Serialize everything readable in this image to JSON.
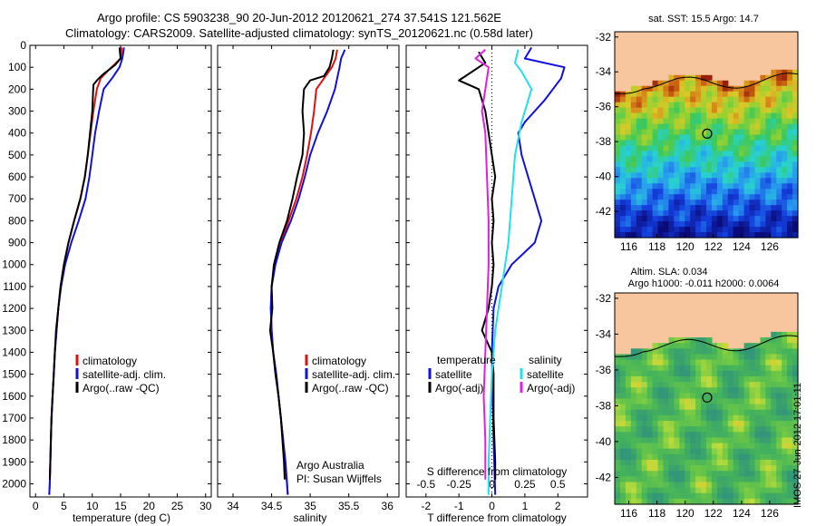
{
  "header": {
    "line1": "Argo profile: CS 5903238_90 20-Jun-2012 20120621_274 37.541S 121.562E",
    "line2": "Climatology: CARS2009. Satellite-adjusted climatology: synTS_20120621.nc (0.58d later)"
  },
  "footer": {
    "stamp": "IMOS 27-Jun-2012 17:01:11"
  },
  "colors": {
    "climatology": "#e01010",
    "satellite": "#1010e0",
    "argo": "#000000",
    "sal_satellite": "#20e0ee",
    "sal_argo": "#e020e0"
  },
  "chart_data": [
    {
      "type": "line",
      "title": "",
      "xlabel": "temperature (deg C)",
      "ylabel": "",
      "xlim": [
        -1,
        31
      ],
      "ylim": [
        2060,
        0
      ],
      "x_ticks": [
        "0",
        "5",
        "10",
        "15",
        "20",
        "25",
        "30"
      ],
      "y_ticks": [
        "0",
        "100",
        "200",
        "300",
        "400",
        "500",
        "600",
        "700",
        "800",
        "900",
        "1000",
        "1100",
        "1200",
        "1300",
        "1400",
        "1500",
        "1600",
        "1700",
        "1800",
        "1900",
        "2000"
      ],
      "legend": [
        "climatology",
        "satellite-adj. clim.",
        "Argo(..raw -QC)"
      ],
      "series": [
        {
          "name": "climatology",
          "color": "#e01010",
          "points": [
            [
              15.2,
              10
            ],
            [
              15.0,
              60
            ],
            [
              13.0,
              110
            ],
            [
              11.5,
              150
            ],
            [
              10.8,
              200
            ],
            [
              10.2,
              300
            ],
            [
              9.7,
              400
            ],
            [
              9.2,
              500
            ],
            [
              8.7,
              600
            ],
            [
              7.9,
              700
            ],
            [
              6.8,
              800
            ],
            [
              5.8,
              900
            ],
            [
              5.0,
              1000
            ],
            [
              4.4,
              1100
            ],
            [
              4.0,
              1200
            ],
            [
              3.7,
              1300
            ],
            [
              3.4,
              1400
            ],
            [
              3.2,
              1500
            ],
            [
              3.0,
              1600
            ],
            [
              2.8,
              1700
            ],
            [
              2.7,
              1800
            ],
            [
              2.6,
              1900
            ],
            [
              2.5,
              2000
            ],
            [
              2.4,
              2050
            ]
          ]
        },
        {
          "name": "satellite-adj. clim.",
          "color": "#1010e0",
          "points": [
            [
              15.6,
              10
            ],
            [
              15.3,
              60
            ],
            [
              14.8,
              100
            ],
            [
              13.5,
              150
            ],
            [
              12.0,
              200
            ],
            [
              11.2,
              300
            ],
            [
              10.5,
              400
            ],
            [
              10.0,
              500
            ],
            [
              9.5,
              600
            ],
            [
              8.8,
              700
            ],
            [
              7.6,
              800
            ],
            [
              6.3,
              900
            ],
            [
              5.2,
              1000
            ],
            [
              4.5,
              1100
            ],
            [
              4.0,
              1200
            ],
            [
              3.7,
              1300
            ],
            [
              3.4,
              1400
            ],
            [
              3.2,
              1500
            ],
            [
              3.0,
              1600
            ],
            [
              2.8,
              1700
            ],
            [
              2.7,
              1800
            ],
            [
              2.6,
              1900
            ],
            [
              2.5,
              2000
            ],
            [
              2.4,
              2050
            ]
          ]
        },
        {
          "name": "Argo(..raw -QC)",
          "color": "#000000",
          "points": [
            [
              14.8,
              10
            ],
            [
              15.0,
              60
            ],
            [
              14.0,
              90
            ],
            [
              12.0,
              130
            ],
            [
              10.8,
              160
            ],
            [
              10.2,
              180
            ],
            [
              10.0,
              300
            ],
            [
              9.6,
              400
            ],
            [
              9.2,
              500
            ],
            [
              8.7,
              600
            ],
            [
              7.9,
              700
            ],
            [
              6.8,
              800
            ],
            [
              5.8,
              900
            ],
            [
              5.0,
              1000
            ],
            [
              4.4,
              1100
            ],
            [
              4.0,
              1200
            ],
            [
              3.6,
              1300
            ],
            [
              3.4,
              1400
            ],
            [
              3.2,
              1500
            ],
            [
              3.0,
              1600
            ],
            [
              2.8,
              1700
            ],
            [
              2.7,
              1800
            ],
            [
              2.6,
              1900
            ],
            [
              2.5,
              1980
            ]
          ]
        }
      ]
    },
    {
      "type": "line",
      "title": "",
      "xlabel": "salinity",
      "ylabel": "",
      "xlim": [
        33.8,
        36.15
      ],
      "ylim": [
        2060,
        0
      ],
      "x_ticks": [
        "34",
        "34.5",
        "35",
        "35.5",
        "36"
      ],
      "legend": [
        "climatology",
        "satellite-adj. clim.",
        "Argo(..raw -QC)"
      ],
      "annotations": [
        "Argo Australia",
        "PI: Susan Wijffels"
      ],
      "series": [
        {
          "name": "climatology",
          "color": "#e01010",
          "points": [
            [
              35.35,
              20
            ],
            [
              35.33,
              60
            ],
            [
              35.28,
              100
            ],
            [
              35.18,
              150
            ],
            [
              35.08,
              200
            ],
            [
              35.05,
              300
            ],
            [
              35.01,
              400
            ],
            [
              34.96,
              500
            ],
            [
              34.9,
              600
            ],
            [
              34.82,
              700
            ],
            [
              34.72,
              800
            ],
            [
              34.62,
              900
            ],
            [
              34.54,
              1000
            ],
            [
              34.5,
              1100
            ],
            [
              34.49,
              1200
            ],
            [
              34.5,
              1300
            ],
            [
              34.52,
              1400
            ],
            [
              34.56,
              1500
            ],
            [
              34.59,
              1600
            ],
            [
              34.62,
              1700
            ],
            [
              34.65,
              1800
            ],
            [
              34.67,
              1900
            ],
            [
              34.7,
              2000
            ],
            [
              34.71,
              2050
            ]
          ]
        },
        {
          "name": "satellite-adj. clim.",
          "color": "#1010e0",
          "points": [
            [
              35.45,
              20
            ],
            [
              35.4,
              60
            ],
            [
              35.38,
              100
            ],
            [
              35.35,
              150
            ],
            [
              35.32,
              200
            ],
            [
              35.22,
              300
            ],
            [
              35.1,
              400
            ],
            [
              35.0,
              500
            ],
            [
              34.93,
              600
            ],
            [
              34.85,
              700
            ],
            [
              34.75,
              800
            ],
            [
              34.63,
              900
            ],
            [
              34.55,
              1000
            ],
            [
              34.5,
              1100
            ],
            [
              34.49,
              1200
            ],
            [
              34.5,
              1300
            ],
            [
              34.52,
              1400
            ],
            [
              34.56,
              1500
            ],
            [
              34.59,
              1600
            ],
            [
              34.62,
              1700
            ],
            [
              34.65,
              1800
            ],
            [
              34.68,
              1900
            ],
            [
              34.7,
              2000
            ],
            [
              34.71,
              2050
            ]
          ]
        },
        {
          "name": "Argo(..raw -QC)",
          "color": "#000000",
          "points": [
            [
              35.3,
              20
            ],
            [
              35.28,
              60
            ],
            [
              35.25,
              100
            ],
            [
              35.18,
              140
            ],
            [
              35.0,
              160
            ],
            [
              34.92,
              200
            ],
            [
              34.9,
              300
            ],
            [
              34.92,
              400
            ],
            [
              34.9,
              500
            ],
            [
              34.83,
              600
            ],
            [
              34.77,
              700
            ],
            [
              34.7,
              800
            ],
            [
              34.6,
              900
            ],
            [
              34.53,
              1000
            ],
            [
              34.5,
              1100
            ],
            [
              34.51,
              1200
            ],
            [
              34.48,
              1300
            ],
            [
              34.52,
              1400
            ],
            [
              34.55,
              1500
            ],
            [
              34.59,
              1600
            ],
            [
              34.62,
              1700
            ],
            [
              34.64,
              1800
            ],
            [
              34.66,
              1900
            ],
            [
              34.67,
              1980
            ]
          ]
        }
      ]
    },
    {
      "type": "line",
      "title": "",
      "xlabel": "T difference from climatology",
      "ylabel": "",
      "xlim": [
        -2.6,
        2.9
      ],
      "ylim": [
        2060,
        0
      ],
      "x_ticks": [
        "-2",
        "-1",
        "0",
        "1",
        "2"
      ],
      "top_xlabel": "S difference from climatology",
      "top_x_ticks": [
        "-0.5",
        "-0.25",
        "0",
        "0.25",
        "0.5"
      ],
      "legend_left_title": "temperature",
      "legend_right_title": "salinity",
      "legend": [
        "satellite",
        "Argo(-adj)",
        "satellite",
        "Argo(-adj)"
      ],
      "series": [
        {
          "name": "satellite",
          "color": "#1010e0",
          "points": [
            [
              1.2,
              10
            ],
            [
              1.0,
              60
            ],
            [
              2.2,
              100
            ],
            [
              2.1,
              150
            ],
            [
              1.6,
              250
            ],
            [
              1.0,
              350
            ],
            [
              0.8,
              400
            ],
            [
              0.9,
              500
            ],
            [
              1.1,
              600
            ],
            [
              1.3,
              700
            ],
            [
              1.5,
              800
            ],
            [
              1.3,
              900
            ],
            [
              0.6,
              1000
            ],
            [
              0.2,
              1100
            ],
            [
              0.05,
              1200
            ],
            [
              0.0,
              1400
            ],
            [
              0.02,
              1600
            ],
            [
              0.05,
              1800
            ],
            [
              0.1,
              2050
            ]
          ]
        },
        {
          "name": "Argo(-adj)",
          "color": "#000000",
          "points": [
            [
              -0.4,
              30
            ],
            [
              -0.2,
              80
            ],
            [
              -1.0,
              160
            ],
            [
              -0.4,
              200
            ],
            [
              -0.2,
              300
            ],
            [
              -0.1,
              400
            ],
            [
              0,
              500
            ],
            [
              0.1,
              600
            ],
            [
              0,
              700
            ],
            [
              0.05,
              800
            ],
            [
              0,
              900
            ],
            [
              0.05,
              1000
            ],
            [
              0,
              1100
            ],
            [
              -0.1,
              1200
            ],
            [
              -0.3,
              1300
            ],
            [
              0,
              1400
            ],
            [
              0.05,
              1500
            ],
            [
              0.05,
              1700
            ],
            [
              0.1,
              1900
            ],
            [
              0.1,
              1980
            ]
          ]
        },
        {
          "name": "satellite",
          "color": "#20e0ee",
          "points": [
            [
              0.8,
              20
            ],
            [
              0.7,
              80
            ],
            [
              0.9,
              120
            ],
            [
              1.2,
              200
            ],
            [
              0.9,
              350
            ],
            [
              0.7,
              500
            ],
            [
              0.6,
              700
            ],
            [
              0.5,
              900
            ],
            [
              0.3,
              1100
            ],
            [
              0.1,
              1300
            ],
            [
              0,
              1500
            ],
            [
              -0.05,
              1700
            ],
            [
              -0.1,
              1900
            ],
            [
              -0.1,
              2050
            ]
          ]
        },
        {
          "name": "Argo(-adj)",
          "color": "#e020e0",
          "points": [
            [
              -0.2,
              20
            ],
            [
              -0.5,
              60
            ],
            [
              -0.1,
              100
            ],
            [
              -0.2,
              200
            ],
            [
              -0.3,
              300
            ],
            [
              -0.2,
              400
            ],
            [
              -0.15,
              600
            ],
            [
              -0.1,
              800
            ],
            [
              -0.1,
              1000
            ],
            [
              -0.15,
              1200
            ],
            [
              -0.2,
              1400
            ],
            [
              -0.25,
              1600
            ],
            [
              -0.2,
              1800
            ],
            [
              -0.2,
              1980
            ]
          ]
        }
      ]
    },
    {
      "type": "heatmap",
      "title": "sat. SST: 15.5 Argo: 14.7",
      "xlabel": "",
      "ylabel": "",
      "xlim": [
        115,
        128
      ],
      "ylim": [
        -43.5,
        -31.7
      ],
      "x_ticks": [
        "116",
        "118",
        "120",
        "122",
        "124",
        "126"
      ],
      "y_ticks": [
        "-32",
        "-34",
        "-36",
        "-38",
        "-40",
        "-42"
      ],
      "marker": [
        121.562,
        -37.541
      ]
    },
    {
      "type": "heatmap",
      "title": "Altim. SLA: 0.034",
      "subtitle": "Argo h1000: -0.011 h2000: 0.0064",
      "xlabel": "",
      "ylabel": "",
      "xlim": [
        115,
        128
      ],
      "ylim": [
        -43.5,
        -31.7
      ],
      "x_ticks": [
        "116",
        "118",
        "120",
        "122",
        "124",
        "126"
      ],
      "y_ticks": [
        "-32",
        "-34",
        "-36",
        "-38",
        "-40",
        "-42"
      ],
      "marker": [
        121.562,
        -37.541
      ]
    }
  ]
}
